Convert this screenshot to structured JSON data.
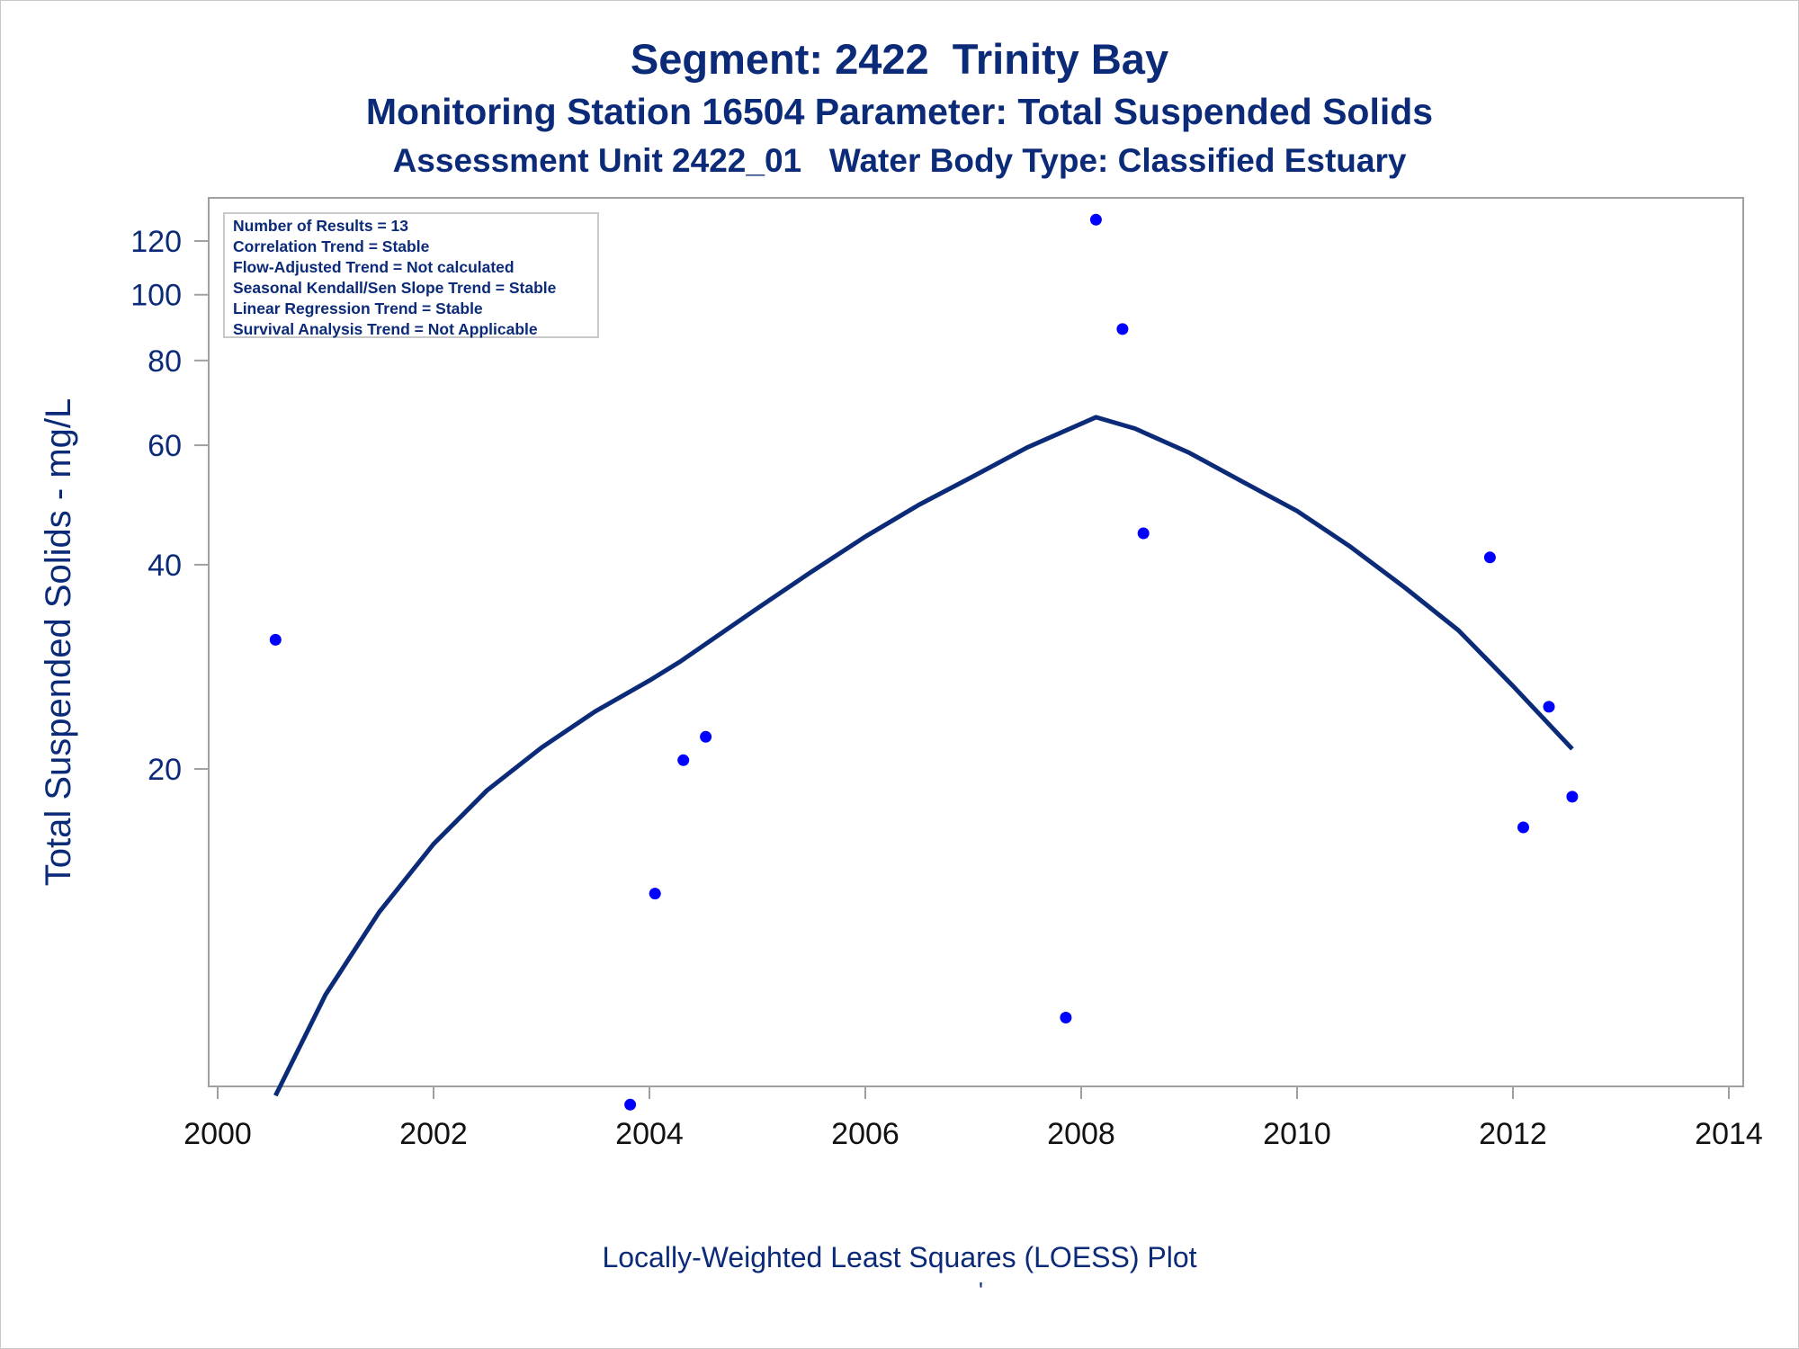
{
  "titles": {
    "line1": "Segment: 2422  Trinity Bay",
    "line2": "Monitoring Station 16504 Parameter: Total Suspended Solids",
    "line3": "Assessment Unit 2422_01   Water Body Type: Classified Estuary"
  },
  "legend": [
    "Number of Results = 13",
    "Correlation Trend = Stable",
    "Flow-Adjusted Trend = Not calculated",
    "Seasonal Kendall/Sen Slope Trend = Stable",
    "Linear Regression Trend = Stable",
    "Survival Analysis Trend = Not Applicable"
  ],
  "footnote": "Locally-Weighted Least Squares (LOESS) Plot",
  "footnote_mark": "'",
  "colors": {
    "text": "#0b2a78",
    "points": "#0000ff",
    "loess_line": "#0b2a78",
    "frame": "#a0a0a0"
  },
  "chart_data": {
    "type": "scatter",
    "ylabel": "Total Suspended Solids - mg/L",
    "xlabel": "",
    "y_scale": "log",
    "xlim": [
      2000,
      2014
    ],
    "ylim": [
      6,
      135
    ],
    "x_ticks": [
      "2000",
      "2002",
      "2004",
      "2006",
      "2008",
      "2010",
      "2012",
      "2014"
    ],
    "y_ticks": [
      "20",
      "40",
      "60",
      "80",
      "100",
      "120"
    ],
    "grid": false,
    "legend_position": "top-left",
    "series": [
      {
        "type": "scatter",
        "points": [
          {
            "x": "2000-07-15",
            "y": 31
          },
          {
            "x": "2003-10-28",
            "y": 6.4
          },
          {
            "x": "2004-01-20",
            "y": 13.1
          },
          {
            "x": "2004-04-25",
            "y": 20.6
          },
          {
            "x": "2004-07-10",
            "y": 22.3
          },
          {
            "x": "2007-11-10",
            "y": 8.6
          },
          {
            "x": "2008-02-20",
            "y": 129
          },
          {
            "x": "2008-05-20",
            "y": 89
          },
          {
            "x": "2008-07-30",
            "y": 44.5
          },
          {
            "x": "2011-10-15",
            "y": 41
          },
          {
            "x": "2012-02-05",
            "y": 16.4
          },
          {
            "x": "2012-05-02",
            "y": 24.7
          },
          {
            "x": "2012-07-20",
            "y": 18.2
          }
        ]
      },
      {
        "type": "line",
        "points": [
          {
            "x": "2000-07-15",
            "y": 6.6
          },
          {
            "x": "2001-01-01",
            "y": 9.3
          },
          {
            "x": "2001-07-01",
            "y": 12.3
          },
          {
            "x": "2002-01-01",
            "y": 15.5
          },
          {
            "x": "2002-07-01",
            "y": 18.6
          },
          {
            "x": "2003-01-01",
            "y": 21.5
          },
          {
            "x": "2003-07-01",
            "y": 24.3
          },
          {
            "x": "2004-01-01",
            "y": 27.0
          },
          {
            "x": "2004-04-15",
            "y": 28.8
          },
          {
            "x": "2005-01-01",
            "y": 34.5
          },
          {
            "x": "2005-07-01",
            "y": 39.0
          },
          {
            "x": "2006-01-01",
            "y": 44.0
          },
          {
            "x": "2006-07-01",
            "y": 49.0
          },
          {
            "x": "2007-01-01",
            "y": 54.0
          },
          {
            "x": "2007-07-01",
            "y": 59.5
          },
          {
            "x": "2008-02-20",
            "y": 66.0
          },
          {
            "x": "2008-07-01",
            "y": 63.5
          },
          {
            "x": "2009-01-01",
            "y": 58.5
          },
          {
            "x": "2009-07-01",
            "y": 53.0
          },
          {
            "x": "2010-01-01",
            "y": 48.0
          },
          {
            "x": "2010-07-01",
            "y": 42.5
          },
          {
            "x": "2011-01-01",
            "y": 37.0
          },
          {
            "x": "2011-07-01",
            "y": 32.0
          },
          {
            "x": "2012-01-01",
            "y": 26.5
          },
          {
            "x": "2012-07-20",
            "y": 21.4
          }
        ]
      }
    ]
  }
}
